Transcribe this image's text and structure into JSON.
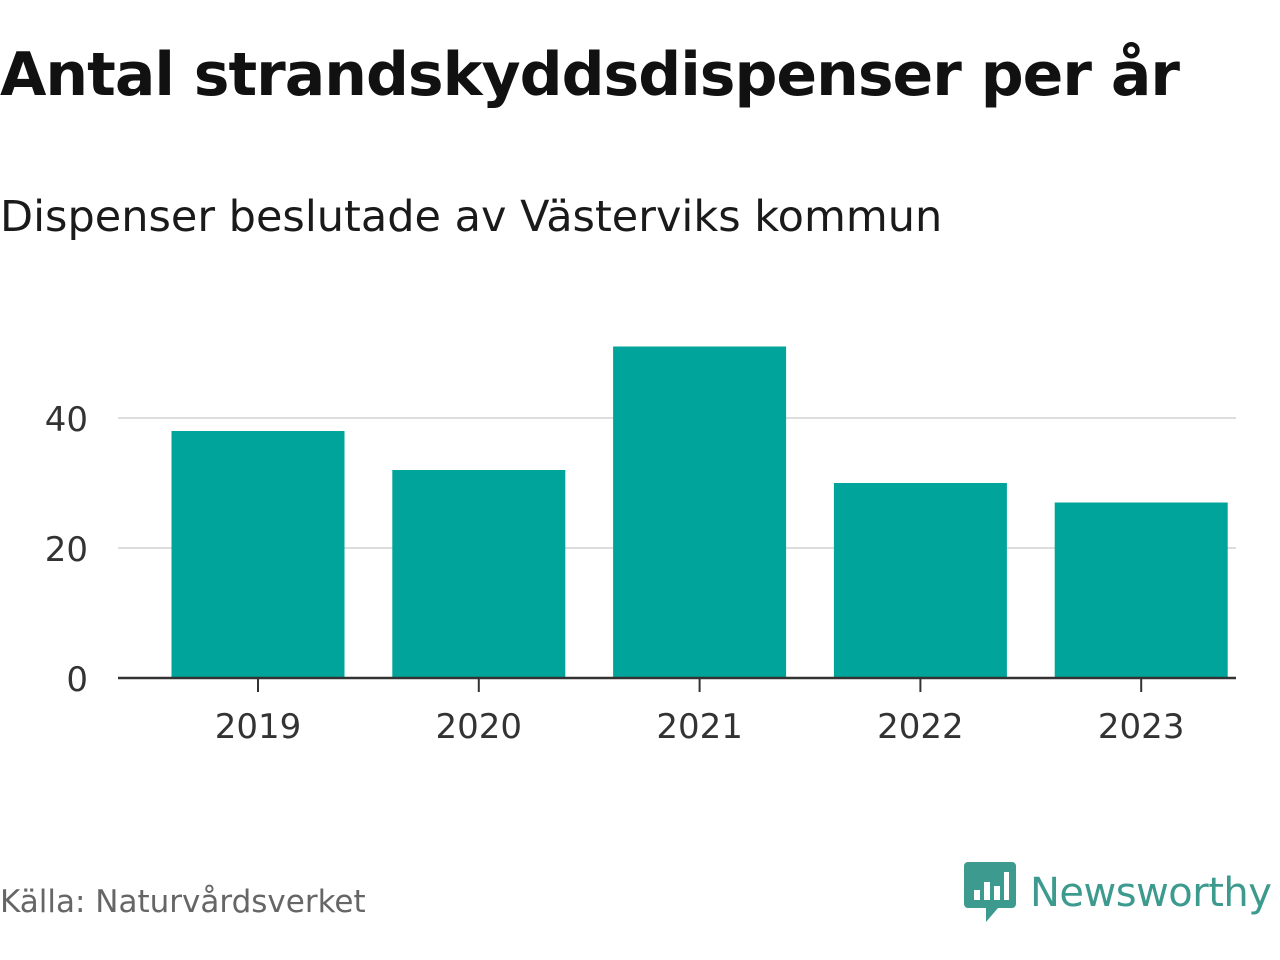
{
  "header": {
    "title": "Antal strandskyddsdispenser per år",
    "subtitle": "Dispenser beslutade av Västerviks kommun"
  },
  "footer": {
    "source": "Källa: Naturvårdsverket",
    "brand": "Newsworthy"
  },
  "colors": {
    "bar": "#00a49a",
    "grid": "#dddddd",
    "axis": "#333333",
    "tick_text": "#333333",
    "brand": "#3d9a8e"
  },
  "chart_data": {
    "type": "bar",
    "title": "Antal strandskyddsdispenser per år",
    "subtitle": "Dispenser beslutade av Västerviks kommun",
    "xlabel": "",
    "ylabel": "",
    "categories": [
      "2019",
      "2020",
      "2021",
      "2022",
      "2023"
    ],
    "values": [
      38,
      32,
      51,
      30,
      27
    ],
    "ylim": [
      0,
      55
    ],
    "yticks": [
      0,
      20,
      40
    ],
    "grid": true,
    "legend": "none"
  }
}
